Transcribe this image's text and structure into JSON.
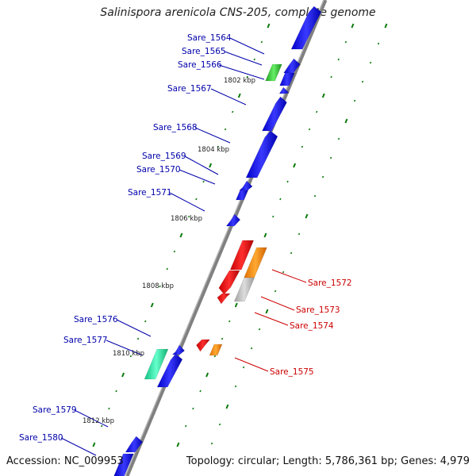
{
  "header": {
    "title": "Salinispora arenicola CNS-205, complete genome"
  },
  "footer": {
    "accession": "Accession: NC_009953",
    "summary": "Topology: circular; Length: 5,786,361 bp; Genes: 4,979"
  },
  "colors": {
    "backbone": "#808080",
    "forward_gene": "#0000e6",
    "reverse_gene": "#dd0000",
    "pseudo": "#bbbbbb",
    "rna": "#ff8800",
    "green_feature": "#33cc33",
    "teal_feature": "#22eeaa",
    "tick": "#0a7a0a",
    "label_forward": "#0000aa",
    "label_reverse": "#cc0000"
  },
  "kbp_marks": [
    {
      "label": "1802 kbp"
    },
    {
      "label": "1804 kbp"
    },
    {
      "label": "1806 kbp"
    },
    {
      "label": "1808 kbp"
    },
    {
      "label": "1810 kbp"
    },
    {
      "label": "1812 kbp"
    }
  ],
  "genes_left": [
    {
      "label": "Sare_1564"
    },
    {
      "label": "Sare_1565"
    },
    {
      "label": "Sare_1566"
    },
    {
      "label": "Sare_1567"
    },
    {
      "label": "Sare_1568"
    },
    {
      "label": "Sare_1569"
    },
    {
      "label": "Sare_1570"
    },
    {
      "label": "Sare_1571"
    },
    {
      "label": "Sare_1576"
    },
    {
      "label": "Sare_1577"
    },
    {
      "label": "Sare_1579"
    },
    {
      "label": "Sare_1580"
    }
  ],
  "genes_right": [
    {
      "label": "Sare_1572"
    },
    {
      "label": "Sare_1573"
    },
    {
      "label": "Sare_1574"
    },
    {
      "label": "Sare_1575"
    }
  ]
}
